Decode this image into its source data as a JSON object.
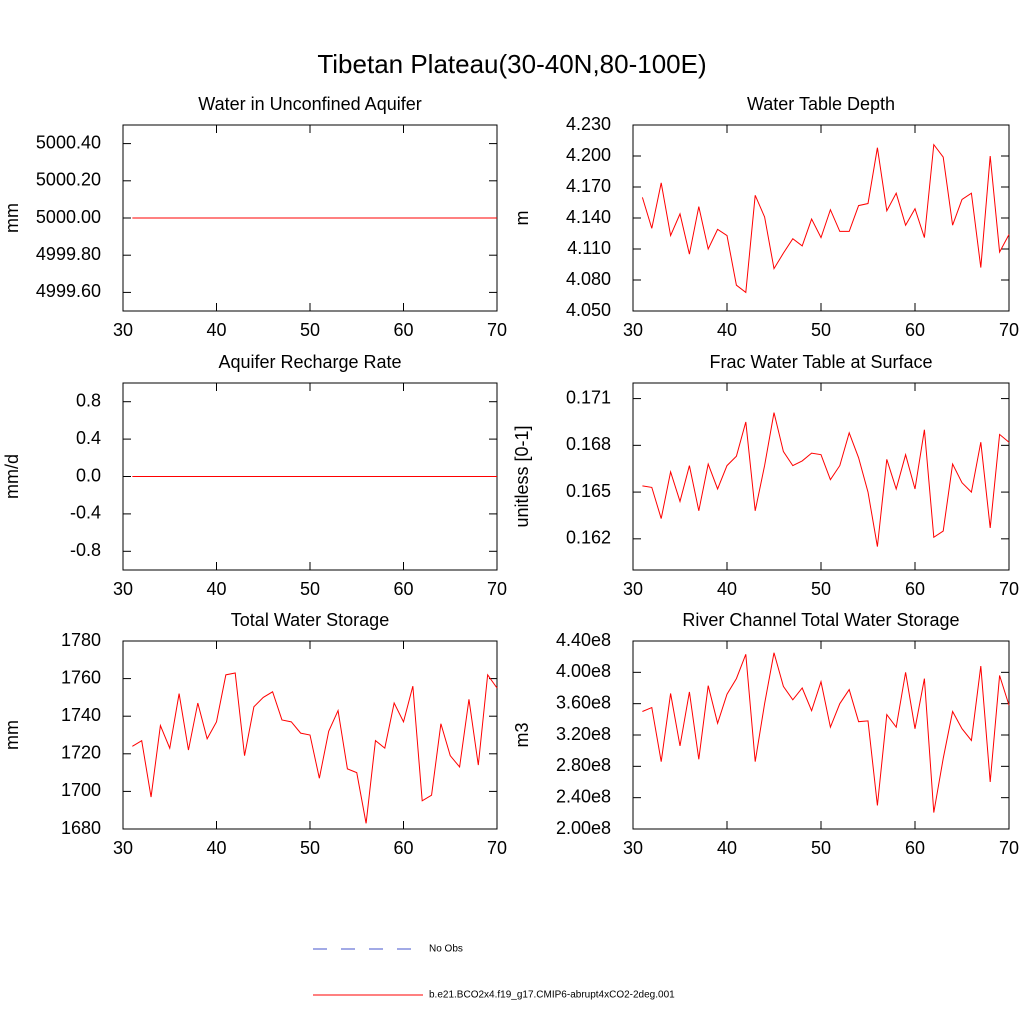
{
  "title": "Tibetan Plateau(30-40N,80-100E)",
  "legend": [
    {
      "name": "No Obs",
      "color": "#4455cc",
      "dash": true
    },
    {
      "name": "b.e21.BCO2x4.f19_g17.CMIP6-abrupt4xCO2-2deg.001",
      "color": "#ff0000",
      "dash": false
    }
  ],
  "chart_data": [
    {
      "type": "line",
      "title": "Water in Unconfined Aquifer",
      "y_label": "mm",
      "color": "#ff0000",
      "x": [
        31,
        32,
        33,
        34,
        35,
        36,
        37,
        38,
        39,
        40,
        41,
        42,
        43,
        44,
        45,
        46,
        47,
        48,
        49,
        50,
        51,
        52,
        53,
        54,
        55,
        56,
        57,
        58,
        59,
        60,
        61,
        62,
        63,
        64,
        65,
        66,
        67,
        68,
        69,
        70
      ],
      "values": [
        5000,
        5000,
        5000,
        5000,
        5000,
        5000,
        5000,
        5000,
        5000,
        5000,
        5000,
        5000,
        5000,
        5000,
        5000,
        5000,
        5000,
        5000,
        5000,
        5000,
        5000,
        5000,
        5000,
        5000,
        5000,
        5000,
        5000,
        5000,
        5000,
        5000,
        5000,
        5000,
        5000,
        5000,
        5000,
        5000,
        5000,
        5000,
        5000,
        5000
      ],
      "xlim": [
        30,
        70
      ],
      "xticks": [
        30,
        40,
        50,
        60,
        70
      ],
      "ylim": [
        4999.5,
        5000.5
      ],
      "yticks": [
        {
          "value": 4999.6,
          "label": "4999.60"
        },
        {
          "value": 4999.8,
          "label": "4999.80"
        },
        {
          "value": 5000,
          "label": "5000.00"
        },
        {
          "value": 5000.2,
          "label": "5000.20"
        },
        {
          "value": 5000.4,
          "label": "5000.40"
        }
      ]
    },
    {
      "type": "line",
      "title": "Water Table Depth",
      "y_label": "m",
      "color": "#ff0000",
      "x": [
        31,
        32,
        33,
        34,
        35,
        36,
        37,
        38,
        39,
        40,
        41,
        42,
        43,
        44,
        45,
        46,
        47,
        48,
        49,
        50,
        51,
        52,
        53,
        54,
        55,
        56,
        57,
        58,
        59,
        60,
        61,
        62,
        63,
        64,
        65,
        66,
        67,
        68,
        69,
        70
      ],
      "values": [
        4.16,
        4.13,
        4.174,
        4.123,
        4.144,
        4.105,
        4.151,
        4.11,
        4.129,
        4.123,
        4.075,
        4.068,
        4.162,
        4.141,
        4.091,
        4.106,
        4.12,
        4.113,
        4.139,
        4.121,
        4.148,
        4.127,
        4.127,
        4.152,
        4.154,
        4.208,
        4.147,
        4.164,
        4.133,
        4.149,
        4.121,
        4.211,
        4.199,
        4.133,
        4.158,
        4.164,
        4.092,
        4.2,
        4.107,
        4.124
      ],
      "xlim": [
        30,
        70
      ],
      "xticks": [
        30,
        40,
        50,
        60,
        70
      ],
      "ylim": [
        4.05,
        4.23
      ],
      "yticks": [
        {
          "value": 4.05,
          "label": "4.050"
        },
        {
          "value": 4.08,
          "label": "4.080"
        },
        {
          "value": 4.11,
          "label": "4.110"
        },
        {
          "value": 4.14,
          "label": "4.140"
        },
        {
          "value": 4.17,
          "label": "4.170"
        },
        {
          "value": 4.2,
          "label": "4.200"
        },
        {
          "value": 4.23,
          "label": "4.230"
        }
      ]
    },
    {
      "type": "line",
      "title": "Aquifer Recharge Rate",
      "y_label": "mm/d",
      "color": "#ff0000",
      "x": [
        31,
        32,
        33,
        34,
        35,
        36,
        37,
        38,
        39,
        40,
        41,
        42,
        43,
        44,
        45,
        46,
        47,
        48,
        49,
        50,
        51,
        52,
        53,
        54,
        55,
        56,
        57,
        58,
        59,
        60,
        61,
        62,
        63,
        64,
        65,
        66,
        67,
        68,
        69,
        70
      ],
      "values": [
        0,
        0,
        0,
        0,
        0,
        0,
        0,
        0,
        0,
        0,
        0,
        0,
        0,
        0,
        0,
        0,
        0,
        0,
        0,
        0,
        0,
        0,
        0,
        0,
        0,
        0,
        0,
        0,
        0,
        0,
        0,
        0,
        0,
        0,
        0,
        0,
        0,
        0,
        0,
        0
      ],
      "xlim": [
        30,
        70
      ],
      "xticks": [
        30,
        40,
        50,
        60,
        70
      ],
      "ylim": [
        -1,
        1
      ],
      "yticks": [
        -0.8,
        -0.4,
        {
          "value": 0,
          "label": "0.0"
        },
        0.4,
        0.8
      ]
    },
    {
      "type": "line",
      "title": "Frac Water Table at Surface",
      "y_label": "unitless [0-1]",
      "color": "#ff0000",
      "x": [
        31,
        32,
        33,
        34,
        35,
        36,
        37,
        38,
        39,
        40,
        41,
        42,
        43,
        44,
        45,
        46,
        47,
        48,
        49,
        50,
        51,
        52,
        53,
        54,
        55,
        56,
        57,
        58,
        59,
        60,
        61,
        62,
        63,
        64,
        65,
        66,
        67,
        68,
        69,
        70
      ],
      "values": [
        0.1654,
        0.1653,
        0.1633,
        0.1663,
        0.1644,
        0.1667,
        0.1638,
        0.1668,
        0.1652,
        0.1667,
        0.1673,
        0.1695,
        0.1638,
        0.1667,
        0.1701,
        0.1676,
        0.1667,
        0.167,
        0.1675,
        0.1674,
        0.1658,
        0.1667,
        0.1688,
        0.1672,
        0.165,
        0.1615,
        0.1671,
        0.1652,
        0.1674,
        0.1652,
        0.169,
        0.1621,
        0.1625,
        0.1668,
        0.1656,
        0.165,
        0.1682,
        0.1627,
        0.1687,
        0.1682
      ],
      "xlim": [
        30,
        70
      ],
      "xticks": [
        30,
        40,
        50,
        60,
        70
      ],
      "ylim": [
        0.16,
        0.172
      ],
      "yticks": [
        0.162,
        0.165,
        0.168,
        0.171
      ]
    },
    {
      "type": "line",
      "title": "Total Water Storage",
      "y_label": "mm",
      "color": "#ff0000",
      "x": [
        31,
        32,
        33,
        34,
        35,
        36,
        37,
        38,
        39,
        40,
        41,
        42,
        43,
        44,
        45,
        46,
        47,
        48,
        49,
        50,
        51,
        52,
        53,
        54,
        55,
        56,
        57,
        58,
        59,
        60,
        61,
        62,
        63,
        64,
        65,
        66,
        67,
        68,
        69,
        70
      ],
      "values": [
        1724,
        1727,
        1697,
        1735,
        1723,
        1752,
        1722,
        1747,
        1728,
        1737,
        1762,
        1763,
        1719,
        1745,
        1750,
        1753,
        1738,
        1737,
        1731,
        1730,
        1707,
        1732,
        1743,
        1712,
        1710,
        1683,
        1727,
        1723,
        1747,
        1737,
        1756,
        1695,
        1698,
        1736,
        1719,
        1713,
        1749,
        1714,
        1762,
        1755
      ],
      "xlim": [
        30,
        70
      ],
      "xticks": [
        30,
        40,
        50,
        60,
        70
      ],
      "ylim": [
        1680,
        1780
      ],
      "yticks": [
        1680,
        1700,
        1720,
        1740,
        1760,
        1780
      ]
    },
    {
      "type": "line",
      "title": "River Channel Total Water Storage",
      "y_label": "m3",
      "color": "#ff0000",
      "x": [
        31,
        32,
        33,
        34,
        35,
        36,
        37,
        38,
        39,
        40,
        41,
        42,
        43,
        44,
        45,
        46,
        47,
        48,
        49,
        50,
        51,
        52,
        53,
        54,
        55,
        56,
        57,
        58,
        59,
        60,
        61,
        62,
        63,
        64,
        65,
        66,
        67,
        68,
        69,
        70
      ],
      "values": [
        350000000,
        355000000,
        286000000,
        373000000,
        306000000,
        375000000,
        289000000,
        383000000,
        335000000,
        372000000,
        392000000,
        423000000,
        286000000,
        360000000,
        425000000,
        382000000,
        365000000,
        380000000,
        351000000,
        388000000,
        330000000,
        360000000,
        378000000,
        337000000,
        338000000,
        230000000,
        346000000,
        330000000,
        400000000,
        328000000,
        392000000,
        221000000,
        290000000,
        350000000,
        328000000,
        313000000,
        408000000,
        260000000,
        396000000,
        358000000
      ],
      "xlim": [
        30,
        70
      ],
      "xticks": [
        30,
        40,
        50,
        60,
        70
      ],
      "ylim": [
        200000000,
        440000000
      ],
      "yticks": [
        {
          "value": 200000000,
          "label": "2.00e8"
        },
        {
          "value": 240000000,
          "label": "2.40e8"
        },
        {
          "value": 280000000,
          "label": "2.80e8"
        },
        {
          "value": 320000000,
          "label": "3.20e8"
        },
        {
          "value": 360000000,
          "label": "3.60e8"
        },
        {
          "value": 400000000,
          "label": "4.00e8"
        },
        {
          "value": 440000000,
          "label": "4.40e8"
        }
      ]
    }
  ]
}
